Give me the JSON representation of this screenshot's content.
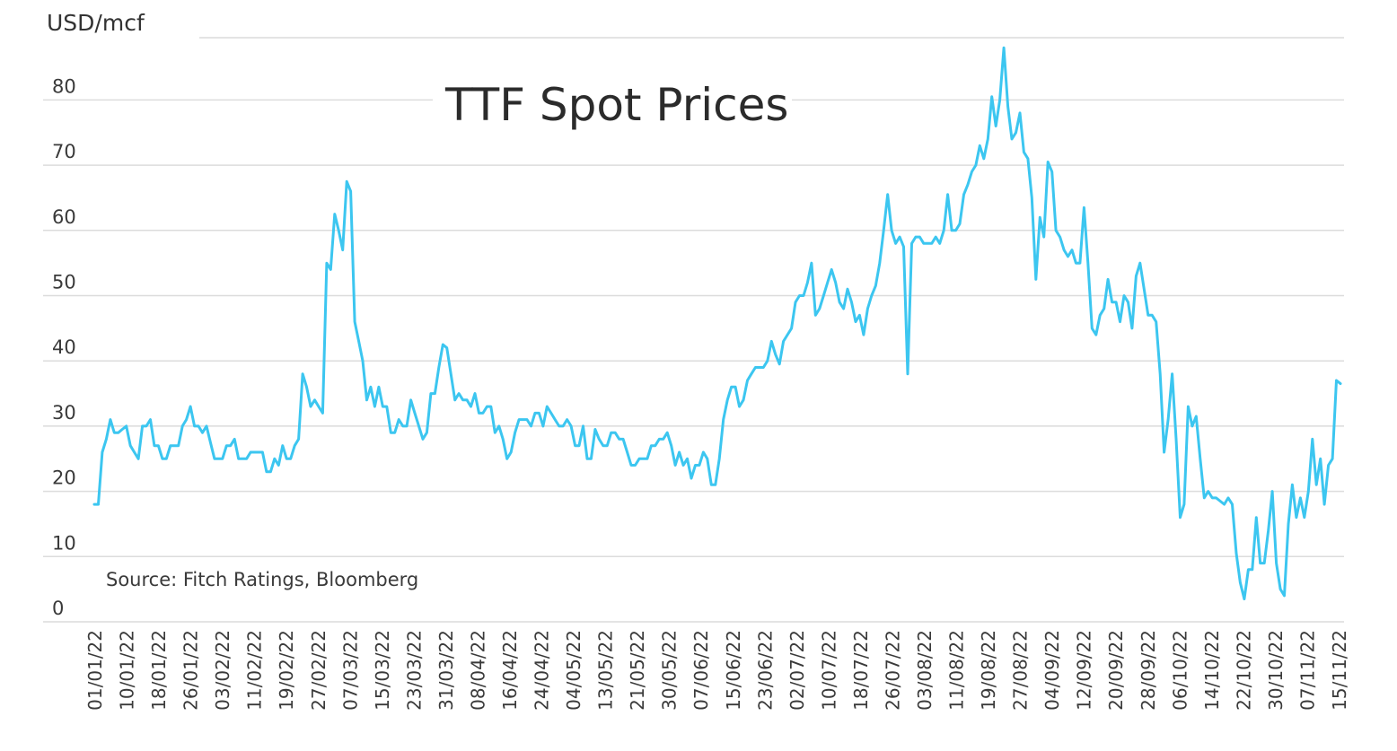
{
  "chart_data": {
    "type": "line",
    "title": "TTF Spot Prices",
    "ylabel": "USD/mcf",
    "source": "Source: Fitch Ratings, Bloomberg",
    "ylim": [
      0,
      87
    ],
    "yticks": [
      0,
      10,
      20,
      30,
      40,
      50,
      60,
      70,
      80
    ],
    "grid": true,
    "line_color": "#3cc6f0",
    "x_ticks": [
      "01/01/22",
      "10/01/22",
      "18/01/22",
      "26/01/22",
      "03/02/22",
      "11/02/22",
      "19/02/22",
      "27/02/22",
      "07/03/22",
      "15/03/22",
      "23/03/22",
      "31/03/22",
      "08/04/22",
      "16/04/22",
      "24/04/22",
      "04/05/22",
      "13/05/22",
      "21/05/22",
      "30/05/22",
      "07/06/22",
      "15/06/22",
      "23/06/22",
      "02/07/22",
      "10/07/22",
      "18/07/22",
      "26/07/22",
      "03/08/22",
      "11/08/22",
      "19/08/22",
      "27/08/22",
      "04/09/22",
      "12/09/22",
      "20/09/22",
      "28/09/22",
      "06/10/22",
      "14/10/22",
      "22/10/22",
      "30/10/22",
      "07/11/22",
      "15/11/22"
    ],
    "series": [
      {
        "values": [
          18,
          18,
          26,
          28,
          31,
          29,
          29,
          29.5,
          30,
          27,
          26,
          25,
          30,
          30,
          31,
          27,
          27,
          25,
          25,
          27,
          27,
          27,
          30,
          31,
          33,
          30,
          30,
          29,
          30,
          27.5,
          25,
          25,
          25,
          27,
          27,
          28,
          25,
          25,
          25,
          26,
          26,
          26,
          26,
          23,
          23,
          25,
          24,
          27,
          25,
          25,
          27,
          28,
          38,
          36,
          33,
          34,
          33,
          32,
          55,
          54,
          62.5,
          60,
          57,
          67.5,
          66,
          46,
          43,
          40,
          34,
          36,
          33,
          36,
          33,
          33,
          29,
          29,
          31,
          30,
          30,
          34,
          32,
          30,
          28,
          29,
          35,
          35,
          39,
          42.5,
          42,
          38,
          34,
          35,
          34,
          34,
          33,
          35,
          32,
          32,
          33,
          33,
          29,
          30,
          28,
          25,
          26,
          29,
          31,
          31,
          31,
          30,
          32,
          32,
          30,
          33,
          32,
          31,
          30,
          30,
          31,
          30,
          27,
          27,
          30,
          25,
          25,
          29.5,
          28,
          27,
          27,
          29,
          29,
          28,
          28,
          26,
          24,
          24,
          25,
          25,
          25,
          27,
          27,
          28,
          28,
          29,
          27,
          24,
          26,
          24,
          25,
          22,
          24,
          24,
          26,
          25,
          21,
          21,
          25,
          31,
          34,
          36,
          36,
          33,
          34,
          37,
          38,
          39,
          39,
          39,
          40,
          43,
          41,
          39.5,
          43,
          44,
          45,
          49,
          50,
          50,
          52,
          55,
          47,
          48,
          50,
          52,
          54,
          52,
          49,
          48,
          51,
          49,
          46,
          47,
          44,
          48,
          50,
          51.5,
          55,
          60,
          65.5,
          60,
          58,
          59,
          57.5,
          38,
          58,
          59,
          59,
          58,
          58,
          58,
          59,
          58,
          60,
          65.5,
          60,
          60,
          61,
          65.5,
          67,
          69,
          70,
          73,
          71,
          74,
          80.5,
          76,
          80,
          88,
          79,
          74,
          75,
          78,
          72,
          71,
          65,
          52.5,
          62,
          59,
          70.5,
          69,
          60,
          59,
          57,
          56,
          57,
          55,
          55,
          63.5,
          55,
          45,
          44,
          47,
          48,
          52.5,
          49,
          49,
          46,
          50,
          49,
          45,
          53,
          55,
          51,
          47,
          47,
          46,
          38,
          26,
          31,
          38,
          28,
          16,
          18,
          33,
          30,
          31.5,
          25,
          19,
          20,
          19,
          19,
          18.5,
          18,
          19,
          18,
          10.5,
          6,
          3.5,
          8,
          8,
          16,
          9,
          9,
          14,
          20,
          9,
          5,
          4,
          15,
          21,
          16,
          19,
          16,
          20,
          28,
          21,
          25,
          18,
          24,
          25,
          37,
          36.5
        ]
      }
    ]
  }
}
